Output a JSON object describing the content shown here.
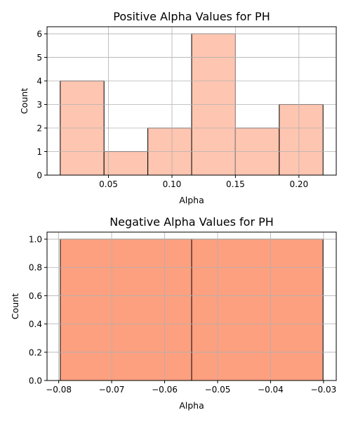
{
  "chart_data": [
    {
      "type": "bar",
      "title": "Positive Alpha Values for PH",
      "xlabel": "Alpha",
      "ylabel": "Count",
      "bin_edges": [
        0.012,
        0.0465,
        0.081,
        0.1155,
        0.15,
        0.1845,
        0.219
      ],
      "values": [
        4,
        1,
        2,
        6,
        2,
        3
      ],
      "xlim": [
        0.0016,
        0.2294
      ],
      "ylim": [
        0,
        6.3
      ],
      "xticks": [
        0.05,
        0.1,
        0.15,
        0.2
      ],
      "xtick_labels": [
        "0.05",
        "0.10",
        "0.15",
        "0.20"
      ],
      "yticks": [
        0,
        1,
        2,
        3,
        4,
        5,
        6
      ],
      "ytick_labels": [
        "0",
        "1",
        "2",
        "3",
        "4",
        "5",
        "6"
      ],
      "grid": true,
      "bar_color": "#fec5b0",
      "edge_color": "#000000"
    },
    {
      "type": "bar",
      "title": "Negative Alpha Values for PH",
      "xlabel": "Alpha",
      "ylabel": "Count",
      "bin_edges": [
        -0.0797,
        -0.0549,
        -0.0301
      ],
      "values": [
        1,
        1
      ],
      "xlim": [
        -0.0822,
        -0.0276
      ],
      "ylim": [
        0,
        1.05
      ],
      "xticks": [
        -0.08,
        -0.07,
        -0.06,
        -0.05,
        -0.04,
        -0.03
      ],
      "xtick_labels": [
        "−0.08",
        "−0.07",
        "−0.06",
        "−0.05",
        "−0.04",
        "−0.03"
      ],
      "yticks": [
        0,
        0.2,
        0.4,
        0.6,
        0.8,
        1.0
      ],
      "ytick_labels": [
        "0.0",
        "0.2",
        "0.4",
        "0.6",
        "0.8",
        "1.0"
      ],
      "grid": true,
      "bar_color": "#fca080",
      "edge_color": "#000000"
    }
  ]
}
